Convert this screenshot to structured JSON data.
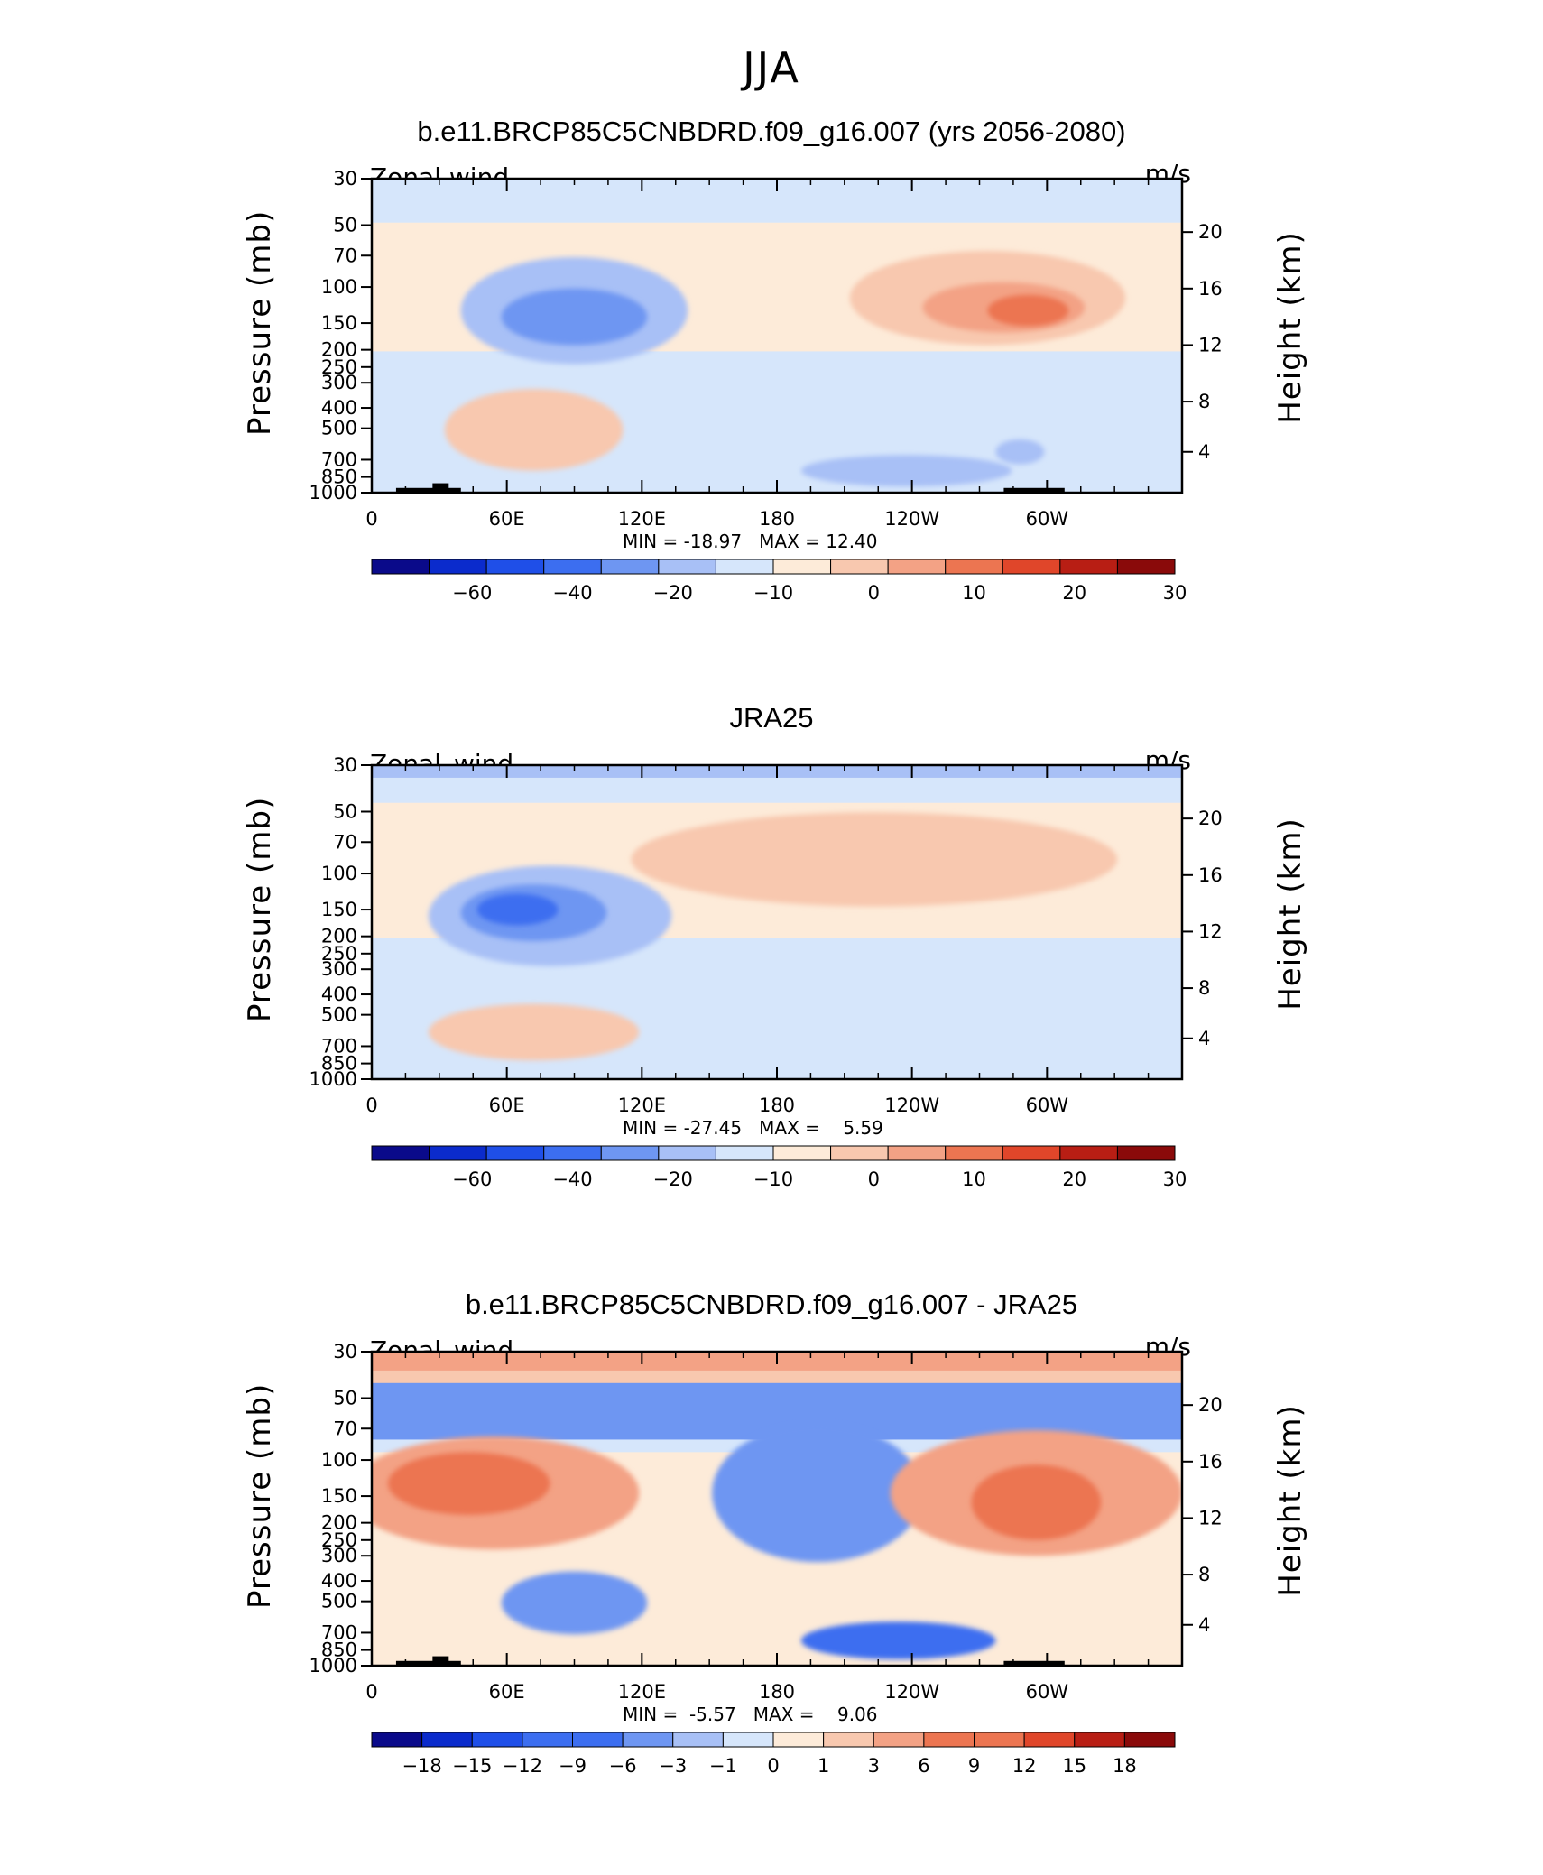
{
  "main_title": "JJA",
  "colors": {
    "palette": [
      "#0a0a8a",
      "#0b2bcc",
      "#1f4fe8",
      "#3c6ef0",
      "#6e96f2",
      "#a8c0f6",
      "#d6e6fb",
      "#fdebd9",
      "#f8c8af",
      "#f3a285",
      "#ec7551",
      "#e0462a",
      "#b81e14",
      "#8a0a0a"
    ]
  },
  "chart_data": [
    {
      "type": "heatmap",
      "title": "b.e11.BRCP85C5CNBDRD.f09_g16.007 (yrs 2056-2080)",
      "variable": "Zonal wind",
      "units": "m/s",
      "ylabel": "Pressure (mb)",
      "ylabel_right": "Height (km)",
      "x_ticks": [
        "0",
        "60E",
        "120E",
        "180",
        "120W",
        "60W"
      ],
      "y_ticks": [
        "30",
        "50",
        "70",
        "100",
        "150",
        "200",
        "250",
        "300",
        "400",
        "500",
        "700",
        "850",
        "1000"
      ],
      "y_right_ticks": [
        "20",
        "16",
        "12",
        "8",
        "4"
      ],
      "min_label": "MIN = -18.97",
      "max_label": "MAX = 12.40",
      "colorbar_levels": [
        "−60",
        "−40",
        "−20",
        "−10",
        "0",
        "10",
        "20",
        "30"
      ],
      "blobs": [
        {
          "lon": 0.25,
          "p": 0.42,
          "rx": 0.14,
          "ry": 0.17,
          "level": 5
        },
        {
          "lon": 0.25,
          "p": 0.44,
          "rx": 0.09,
          "ry": 0.09,
          "level": 4
        },
        {
          "lon": 0.76,
          "p": 0.38,
          "rx": 0.17,
          "ry": 0.15,
          "level": 8
        },
        {
          "lon": 0.78,
          "p": 0.41,
          "rx": 0.1,
          "ry": 0.08,
          "level": 9
        },
        {
          "lon": 0.81,
          "p": 0.42,
          "rx": 0.05,
          "ry": 0.05,
          "level": 10
        },
        {
          "lon": 0.2,
          "p": 0.8,
          "rx": 0.11,
          "ry": 0.13,
          "level": 8
        },
        {
          "lon": 0.66,
          "p": 0.93,
          "rx": 0.13,
          "ry": 0.05,
          "level": 5
        },
        {
          "lon": 0.8,
          "p": 0.87,
          "rx": 0.03,
          "ry": 0.04,
          "level": 5
        }
      ],
      "bands": [
        {
          "from": 0.0,
          "to": 0.14,
          "level": 6
        },
        {
          "from": 0.14,
          "to": 0.55,
          "level": 7
        },
        {
          "from": 0.55,
          "to": 1.0,
          "level": 6
        }
      ]
    },
    {
      "type": "heatmap",
      "title": "JRA25",
      "variable": "Zonal_wind",
      "units": "m/s",
      "ylabel": "Pressure (mb)",
      "ylabel_right": "Height (km)",
      "x_ticks": [
        "0",
        "60E",
        "120E",
        "180",
        "120W",
        "60W"
      ],
      "y_ticks": [
        "30",
        "50",
        "70",
        "100",
        "150",
        "200",
        "250",
        "300",
        "400",
        "500",
        "700",
        "850",
        "1000"
      ],
      "y_right_ticks": [
        "20",
        "16",
        "12",
        "8",
        "4"
      ],
      "min_label": "MIN = -27.45",
      "max_label": "MAX =    5.59",
      "colorbar_levels": [
        "−60",
        "−40",
        "−20",
        "−10",
        "0",
        "10",
        "20",
        "30"
      ],
      "blobs": [
        {
          "lon": 0.22,
          "p": 0.48,
          "rx": 0.15,
          "ry": 0.16,
          "level": 5
        },
        {
          "lon": 0.2,
          "p": 0.47,
          "rx": 0.09,
          "ry": 0.09,
          "level": 4
        },
        {
          "lon": 0.18,
          "p": 0.46,
          "rx": 0.05,
          "ry": 0.05,
          "level": 3
        },
        {
          "lon": 0.62,
          "p": 0.3,
          "rx": 0.3,
          "ry": 0.15,
          "level": 8
        },
        {
          "lon": 0.2,
          "p": 0.85,
          "rx": 0.13,
          "ry": 0.09,
          "level": 8
        },
        {
          "lon": 0.82,
          "p": 0.68,
          "rx": 0.08,
          "ry": 0.1,
          "level": 6
        }
      ],
      "bands": [
        {
          "from": 0.0,
          "to": 0.04,
          "level": 5
        },
        {
          "from": 0.04,
          "to": 0.12,
          "level": 6
        },
        {
          "from": 0.12,
          "to": 0.55,
          "level": 7
        },
        {
          "from": 0.55,
          "to": 1.0,
          "level": 6
        }
      ]
    },
    {
      "type": "heatmap",
      "title": "b.e11.BRCP85C5CNBDRD.f09_g16.007 - JRA25",
      "variable": "Zonal_wind",
      "units": "m/s",
      "ylabel": "Pressure (mb)",
      "ylabel_right": "Height (km)",
      "x_ticks": [
        "0",
        "60E",
        "120E",
        "180",
        "120W",
        "60W"
      ],
      "y_ticks": [
        "30",
        "50",
        "70",
        "100",
        "150",
        "200",
        "250",
        "300",
        "400",
        "500",
        "700",
        "850",
        "1000"
      ],
      "y_right_ticks": [
        "20",
        "16",
        "12",
        "8",
        "4"
      ],
      "min_label": "MIN =  -5.57",
      "max_label": "MAX =    9.06",
      "colorbar_levels": [
        "−18",
        "−15",
        "−12",
        "−9",
        "−6",
        "−3",
        "−1",
        "0",
        "1",
        "3",
        "6",
        "9",
        "12",
        "15",
        "18"
      ],
      "blobs": [
        {
          "lon": 0.15,
          "p": 0.45,
          "rx": 0.18,
          "ry": 0.18,
          "level": 9
        },
        {
          "lon": 0.12,
          "p": 0.42,
          "rx": 0.1,
          "ry": 0.1,
          "level": 10
        },
        {
          "lon": 0.55,
          "p": 0.45,
          "rx": 0.13,
          "ry": 0.22,
          "level": 4
        },
        {
          "lon": 0.82,
          "p": 0.45,
          "rx": 0.18,
          "ry": 0.2,
          "level": 9
        },
        {
          "lon": 0.82,
          "p": 0.48,
          "rx": 0.08,
          "ry": 0.12,
          "level": 10
        },
        {
          "lon": 0.25,
          "p": 0.8,
          "rx": 0.09,
          "ry": 0.1,
          "level": 4
        },
        {
          "lon": 0.65,
          "p": 0.92,
          "rx": 0.12,
          "ry": 0.06,
          "level": 3
        }
      ],
      "bands": [
        {
          "from": 0.0,
          "to": 0.06,
          "level": 9
        },
        {
          "from": 0.06,
          "to": 0.1,
          "level": 8
        },
        {
          "from": 0.1,
          "to": 0.28,
          "level": 4
        },
        {
          "from": 0.28,
          "to": 0.32,
          "level": 6
        },
        {
          "from": 0.32,
          "to": 1.0,
          "level": 7
        }
      ]
    }
  ]
}
